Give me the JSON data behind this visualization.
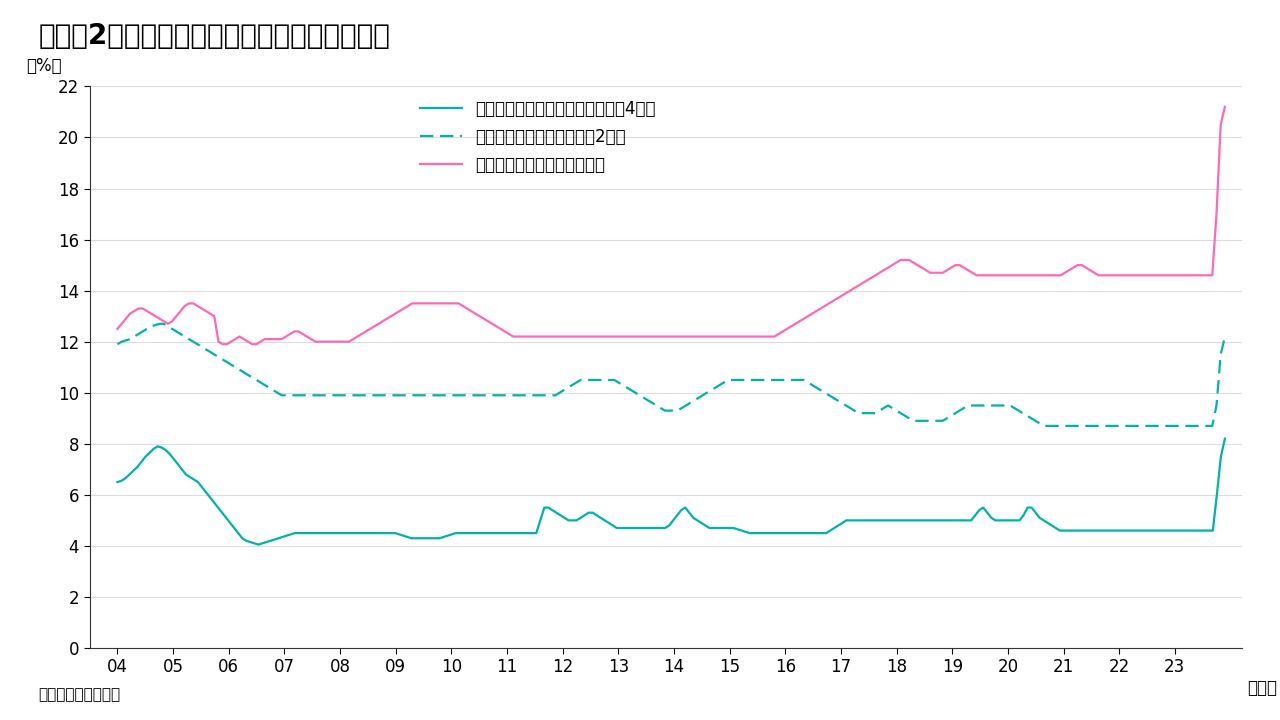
{
  "title": "（図表2）米国：消費者向けローン金利の推移",
  "ylabel": "（%）",
  "xlabel_unit": "（年）",
  "source": "（出所）インベスコ",
  "ylim": [
    0,
    22
  ],
  "yticks": [
    0,
    2,
    4,
    6,
    8,
    10,
    12,
    14,
    16,
    18,
    20,
    22
  ],
  "x_labels": [
    "04",
    "05",
    "06",
    "07",
    "08",
    "09",
    "10",
    "11",
    "12",
    "13",
    "14",
    "15",
    "16",
    "17",
    "18",
    "19",
    "20",
    "21",
    "22",
    "23"
  ],
  "legend": [
    "新規自動車ローン金利（返済期間4年）",
    "個人ローン金利（返済期間2年）",
    "クレジットカードローン金利"
  ],
  "colors": {
    "auto": "#00b3a4",
    "personal": "#00b3a4",
    "credit": "#ff69b4"
  },
  "background_color": "#ffffff",
  "auto_loan": [
    6.5,
    6.55,
    6.65,
    6.8,
    6.95,
    7.1,
    7.3,
    7.5,
    7.65,
    7.8,
    7.9,
    7.85,
    7.75,
    7.6,
    7.4,
    7.2,
    7.0,
    6.8,
    6.7,
    6.6,
    6.5,
    6.3,
    6.1,
    5.9,
    5.7,
    5.5,
    5.3,
    5.1,
    4.9,
    4.7,
    4.5,
    4.3,
    4.2,
    4.15,
    4.1,
    4.05,
    4.1,
    4.15,
    4.2,
    4.25,
    4.3,
    4.35,
    4.4,
    4.45,
    4.5,
    4.5,
    4.5,
    4.5,
    4.5,
    4.5,
    4.5,
    4.5,
    4.5,
    4.5,
    4.5,
    4.5,
    4.5,
    4.5,
    4.5,
    4.5,
    4.5,
    4.5,
    4.5,
    4.5,
    4.5,
    4.5,
    4.5,
    4.5,
    4.5,
    4.5,
    4.45,
    4.4,
    4.35,
    4.3,
    4.3,
    4.3,
    4.3,
    4.3,
    4.3,
    4.3,
    4.3,
    4.35,
    4.4,
    4.45,
    4.5,
    4.5,
    4.5,
    4.5,
    4.5,
    4.5,
    4.5,
    4.5,
    4.5,
    4.5,
    4.5,
    4.5,
    4.5,
    4.5,
    4.5,
    4.5,
    4.5,
    4.5,
    4.5,
    4.5,
    4.5,
    5.0,
    5.5,
    5.5,
    5.4,
    5.3,
    5.2,
    5.1,
    5.0,
    5.0,
    5.0,
    5.1,
    5.2,
    5.3,
    5.3,
    5.2,
    5.1,
    5.0,
    4.9,
    4.8,
    4.7,
    4.7,
    4.7,
    4.7,
    4.7,
    4.7,
    4.7,
    4.7,
    4.7,
    4.7,
    4.7,
    4.7,
    4.7,
    4.8,
    5.0,
    5.2,
    5.4,
    5.5,
    5.3,
    5.1,
    5.0,
    4.9,
    4.8,
    4.7,
    4.7,
    4.7,
    4.7,
    4.7,
    4.7,
    4.7,
    4.65,
    4.6,
    4.55,
    4.5,
    4.5,
    4.5,
    4.5,
    4.5,
    4.5,
    4.5,
    4.5,
    4.5,
    4.5,
    4.5,
    4.5,
    4.5,
    4.5,
    4.5,
    4.5,
    4.5,
    4.5,
    4.5,
    4.5,
    4.6,
    4.7,
    4.8,
    4.9,
    5.0,
    5.0,
    5.0,
    5.0,
    5.0,
    5.0,
    5.0,
    5.0,
    5.0,
    5.0,
    5.0,
    5.0,
    5.0,
    5.0,
    5.0,
    5.0,
    5.0,
    5.0,
    5.0,
    5.0,
    5.0,
    5.0,
    5.0,
    5.0,
    5.0,
    5.0,
    5.0,
    5.0,
    5.0,
    5.0,
    5.0,
    5.0,
    5.2,
    5.4,
    5.5,
    5.3,
    5.1,
    5.0,
    5.0,
    5.0,
    5.0,
    5.0,
    5.0,
    5.0,
    5.2,
    5.5,
    5.5,
    5.3,
    5.1,
    5.0,
    4.9,
    4.8,
    4.7,
    4.6,
    4.6,
    4.6,
    4.6,
    4.6,
    4.6,
    4.6,
    4.6,
    4.6,
    4.6,
    4.6,
    4.6,
    4.6,
    4.6,
    4.6,
    4.6,
    4.6,
    4.6,
    4.6,
    4.6,
    4.6,
    4.6,
    4.6,
    4.6,
    4.6,
    4.6,
    4.6,
    4.6,
    4.6,
    4.6,
    4.6,
    4.6,
    4.6,
    4.6,
    4.6,
    4.6,
    4.6,
    4.6,
    4.6,
    6.0,
    7.5,
    8.2
  ],
  "personal_loan": [
    11.9,
    12.0,
    12.05,
    12.1,
    12.2,
    12.3,
    12.4,
    12.5,
    12.6,
    12.65,
    12.7,
    12.7,
    12.6,
    12.5,
    12.4,
    12.3,
    12.2,
    12.1,
    12.0,
    11.9,
    11.8,
    11.7,
    11.6,
    11.5,
    11.4,
    11.3,
    11.2,
    11.1,
    11.0,
    10.9,
    10.8,
    10.7,
    10.6,
    10.5,
    10.4,
    10.3,
    10.2,
    10.1,
    10.0,
    9.9,
    9.9,
    9.9,
    9.9,
    9.9,
    9.9,
    9.9,
    9.9,
    9.9,
    9.9,
    9.9,
    9.9,
    9.9,
    9.9,
    9.9,
    9.9,
    9.9,
    9.9,
    9.9,
    9.9,
    9.9,
    9.9,
    9.9,
    9.9,
    9.9,
    9.9,
    9.9,
    9.9,
    9.9,
    9.9,
    9.9,
    9.9,
    9.9,
    9.9,
    9.9,
    9.9,
    9.9,
    9.9,
    9.9,
    9.9,
    9.9,
    9.9,
    9.9,
    9.9,
    9.9,
    9.9,
    9.9,
    9.9,
    9.9,
    9.9,
    9.9,
    9.9,
    9.9,
    9.9,
    9.9,
    9.9,
    9.9,
    9.9,
    9.9,
    9.9,
    9.9,
    9.9,
    9.9,
    9.9,
    9.9,
    9.9,
    10.0,
    10.1,
    10.2,
    10.3,
    10.4,
    10.5,
    10.5,
    10.5,
    10.5,
    10.5,
    10.5,
    10.5,
    10.5,
    10.5,
    10.4,
    10.3,
    10.2,
    10.1,
    10.0,
    9.9,
    9.8,
    9.7,
    9.6,
    9.5,
    9.4,
    9.3,
    9.3,
    9.3,
    9.3,
    9.4,
    9.5,
    9.6,
    9.7,
    9.8,
    9.9,
    10.0,
    10.1,
    10.2,
    10.3,
    10.4,
    10.5,
    10.5,
    10.5,
    10.5,
    10.5,
    10.5,
    10.5,
    10.5,
    10.5,
    10.5,
    10.5,
    10.5,
    10.5,
    10.5,
    10.5,
    10.5,
    10.5,
    10.5,
    10.5,
    10.4,
    10.3,
    10.2,
    10.1,
    10.0,
    9.9,
    9.8,
    9.7,
    9.6,
    9.5,
    9.4,
    9.3,
    9.2,
    9.2,
    9.2,
    9.2,
    9.2,
    9.3,
    9.4,
    9.5,
    9.4,
    9.3,
    9.2,
    9.1,
    9.0,
    8.9,
    8.9,
    8.9,
    8.9,
    8.9,
    8.9,
    8.9,
    8.9,
    9.0,
    9.1,
    9.2,
    9.3,
    9.4,
    9.5,
    9.5,
    9.5,
    9.5,
    9.5,
    9.5,
    9.5,
    9.5,
    9.5,
    9.5,
    9.5,
    9.4,
    9.3,
    9.2,
    9.1,
    9.0,
    8.9,
    8.8,
    8.7,
    8.7,
    8.7,
    8.7,
    8.7,
    8.7,
    8.7,
    8.7,
    8.7,
    8.7,
    8.7,
    8.7,
    8.7,
    8.7,
    8.7,
    8.7,
    8.7,
    8.7,
    8.7,
    8.7,
    8.7,
    8.7,
    8.7,
    8.7,
    8.7,
    8.7,
    8.7,
    8.7,
    8.7,
    8.7,
    8.7,
    8.7,
    8.7,
    8.7,
    8.7,
    8.7,
    8.7,
    8.7,
    8.7,
    8.7,
    8.7,
    9.5,
    11.5,
    12.2
  ],
  "credit_card": [
    12.5,
    12.7,
    12.9,
    13.1,
    13.2,
    13.3,
    13.3,
    13.2,
    13.1,
    13.0,
    12.9,
    12.8,
    12.7,
    12.8,
    13.0,
    13.2,
    13.4,
    13.5,
    13.5,
    13.4,
    13.3,
    13.2,
    13.1,
    13.0,
    12.0,
    11.9,
    11.9,
    12.0,
    12.1,
    12.2,
    12.1,
    12.0,
    11.9,
    11.9,
    12.0,
    12.1,
    12.1,
    12.1,
    12.1,
    12.1,
    12.2,
    12.3,
    12.4,
    12.4,
    12.3,
    12.2,
    12.1,
    12.0,
    12.0,
    12.0,
    12.0,
    12.0,
    12.0,
    12.0,
    12.0,
    12.0,
    12.1,
    12.2,
    12.3,
    12.4,
    12.5,
    12.6,
    12.7,
    12.8,
    12.9,
    13.0,
    13.1,
    13.2,
    13.3,
    13.4,
    13.5,
    13.5,
    13.5,
    13.5,
    13.5,
    13.5,
    13.5,
    13.5,
    13.5,
    13.5,
    13.5,
    13.5,
    13.4,
    13.3,
    13.2,
    13.1,
    13.0,
    12.9,
    12.8,
    12.7,
    12.6,
    12.5,
    12.4,
    12.3,
    12.2,
    12.2,
    12.2,
    12.2,
    12.2,
    12.2,
    12.2,
    12.2,
    12.2,
    12.2,
    12.2,
    12.2,
    12.2,
    12.2,
    12.2,
    12.2,
    12.2,
    12.2,
    12.2,
    12.2,
    12.2,
    12.2,
    12.2,
    12.2,
    12.2,
    12.2,
    12.2,
    12.2,
    12.2,
    12.2,
    12.2,
    12.2,
    12.2,
    12.2,
    12.2,
    12.2,
    12.2,
    12.2,
    12.2,
    12.2,
    12.2,
    12.2,
    12.2,
    12.2,
    12.2,
    12.2,
    12.2,
    12.2,
    12.2,
    12.2,
    12.2,
    12.2,
    12.2,
    12.2,
    12.2,
    12.2,
    12.2,
    12.2,
    12.2,
    12.2,
    12.2,
    12.2,
    12.2,
    12.3,
    12.4,
    12.5,
    12.6,
    12.7,
    12.8,
    12.9,
    13.0,
    13.1,
    13.2,
    13.3,
    13.4,
    13.5,
    13.6,
    13.7,
    13.8,
    13.9,
    14.0,
    14.1,
    14.2,
    14.3,
    14.4,
    14.5,
    14.6,
    14.7,
    14.8,
    14.9,
    15.0,
    15.1,
    15.2,
    15.2,
    15.2,
    15.1,
    15.0,
    14.9,
    14.8,
    14.7,
    14.7,
    14.7,
    14.7,
    14.8,
    14.9,
    15.0,
    15.0,
    14.9,
    14.8,
    14.7,
    14.6,
    14.6,
    14.6,
    14.6,
    14.6,
    14.6,
    14.6,
    14.6,
    14.6,
    14.6,
    14.6,
    14.6,
    14.6,
    14.6,
    14.6,
    14.6,
    14.6,
    14.6,
    14.6,
    14.6,
    14.6,
    14.7,
    14.8,
    14.9,
    15.0,
    15.0,
    14.9,
    14.8,
    14.7,
    14.6,
    14.6,
    14.6,
    14.6,
    14.6,
    14.6,
    14.6,
    14.6,
    14.6,
    14.6,
    14.6,
    14.6,
    14.6,
    14.6,
    14.6,
    14.6,
    14.6,
    14.6,
    14.6,
    14.6,
    14.6,
    14.6,
    14.6,
    14.6,
    14.6,
    14.6,
    14.6,
    14.6,
    17.0,
    20.5,
    21.2
  ],
  "title_fontsize": 20,
  "label_fontsize": 12,
  "tick_fontsize": 12,
  "legend_fontsize": 12,
  "source_fontsize": 11
}
